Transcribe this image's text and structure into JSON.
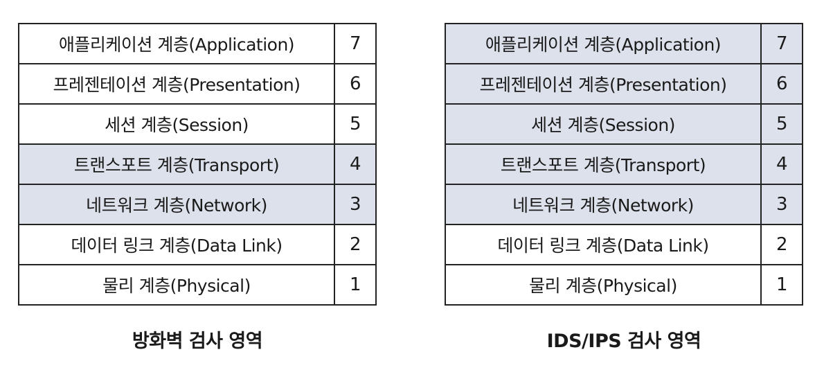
{
  "layers": [
    {
      "name": "애플리케이션 계층(Application)",
      "number": "7"
    },
    {
      "name": "프레젠테이션 계층(Presentation)",
      "number": "6"
    },
    {
      "name": "세션 계층(Session)",
      "number": "5"
    },
    {
      "name": "트랜스포트 계층(Transport)",
      "number": "4"
    },
    {
      "name": "네트워크 계층(Network)",
      "number": "3"
    },
    {
      "name": "데이터 링크 계층(Data Link)",
      "number": "2"
    },
    {
      "name": "물리 계층(Physical)",
      "number": "1"
    }
  ],
  "panels": [
    {
      "caption": "방화벽 검사 영역",
      "highlighted_layers": [
        "4",
        "3"
      ],
      "highlight_color": "#dde1ec"
    },
    {
      "caption": "IDS/IPS 검사 영역",
      "highlighted_layers": [
        "7",
        "6",
        "5",
        "4",
        "3"
      ],
      "highlight_color": "#dde1ec"
    }
  ]
}
